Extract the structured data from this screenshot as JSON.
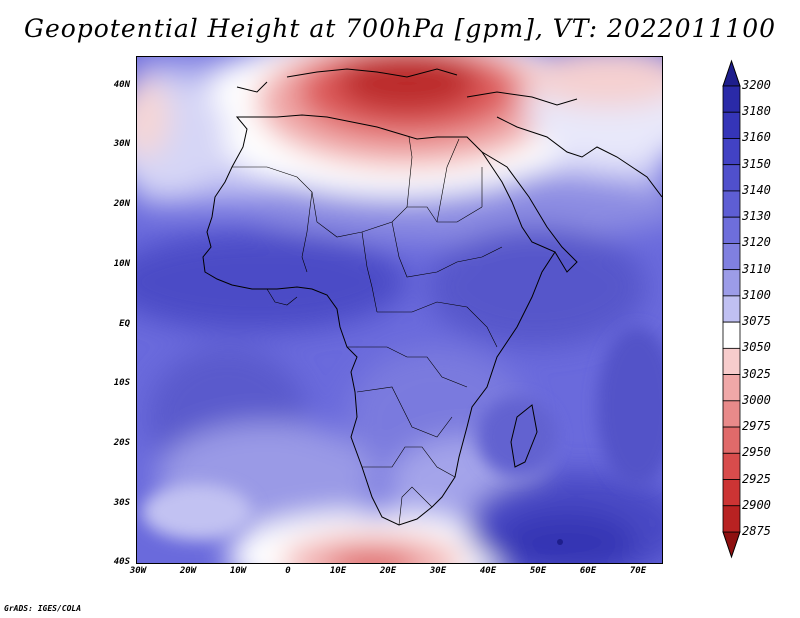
{
  "title": "Geopotential Height at 700hPa [gpm], VT: 2022011100",
  "credit": "GrADS: IGES/COLA",
  "map": {
    "region": "Africa",
    "lat_range": [
      -40,
      45
    ],
    "lon_range": [
      -30,
      75
    ],
    "y_ticks": [
      "40N",
      "30N",
      "20N",
      "10N",
      "EQ",
      "10S",
      "20S",
      "30S",
      "40S"
    ],
    "x_ticks": [
      "30W",
      "20W",
      "10W",
      "0",
      "10E",
      "20E",
      "30E",
      "40E",
      "50E",
      "60E",
      "70E"
    ],
    "features": {
      "high_center": "55E 37S",
      "low_center_north": "Mediterranean / Greece",
      "low_center_south": "15E 40S"
    }
  },
  "colorbar": {
    "levels": [
      "3200",
      "3180",
      "3160",
      "3150",
      "3140",
      "3130",
      "3120",
      "3110",
      "3100",
      "3075",
      "3050",
      "3025",
      "3000",
      "2975",
      "2950",
      "2925",
      "2900",
      "2875"
    ],
    "colors": [
      "#2a2aa8",
      "#3535b8",
      "#4242c4",
      "#5050cc",
      "#5e5ed4",
      "#6e6edb",
      "#8080e0",
      "#9c9ce8",
      "#c0c0f2",
      "#ffffff",
      "#f7cccc",
      "#f0a8a8",
      "#e88a8a",
      "#e06a6a",
      "#d84c4c",
      "#cc3434",
      "#b82222",
      "#a01414"
    ],
    "top_triangle_color": "#1e1e8c",
    "bottom_triangle_color": "#8e1010"
  }
}
